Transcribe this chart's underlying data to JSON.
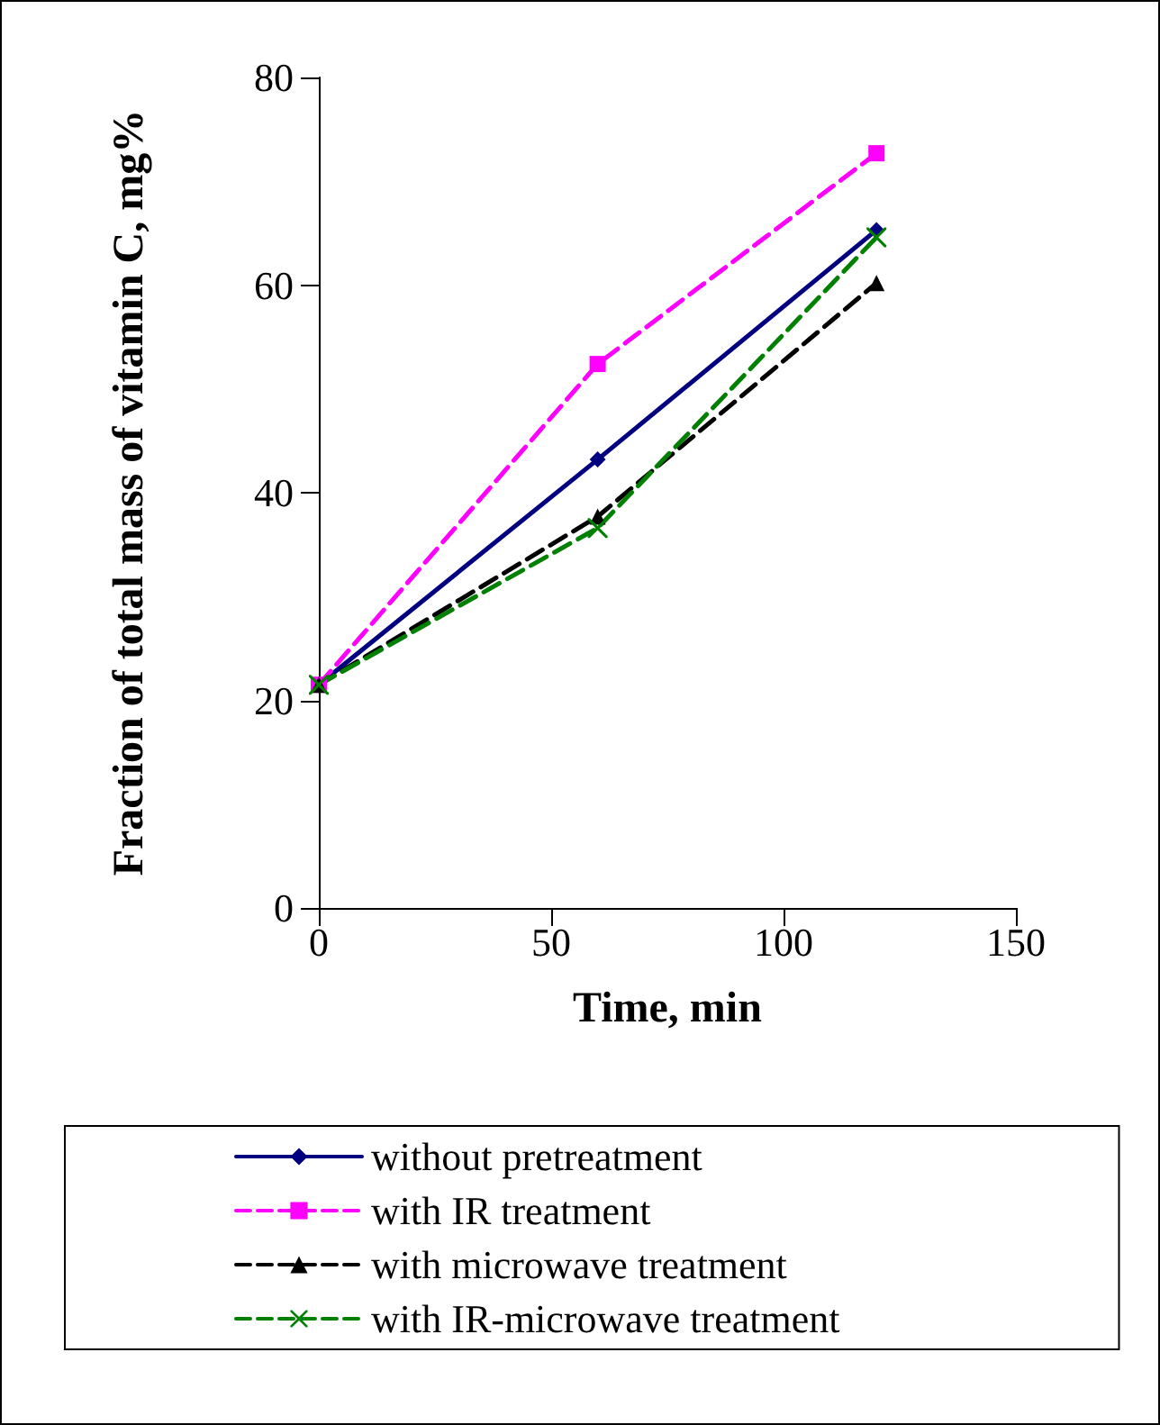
{
  "chart_data": {
    "type": "line",
    "xlabel": "Time, min",
    "ylabel": "Fraction of total mass of vitamin C, mg%",
    "x": [
      0,
      60,
      120
    ],
    "xlim": [
      0,
      150
    ],
    "xticks": [
      0,
      50,
      100,
      150
    ],
    "ylim": [
      0,
      80
    ],
    "yticks": [
      0,
      20,
      40,
      60,
      80
    ],
    "grid": false,
    "legend": "bottom",
    "series": [
      {
        "name": "without pretreatment",
        "color": "#000080",
        "marker": "diamond",
        "line_style": "solid",
        "values": [
          21.5,
          43.2,
          65.3
        ]
      },
      {
        "name": "with IR treatment",
        "color": "#ff00ff",
        "marker": "square",
        "line_style": "dashed",
        "values": [
          21.5,
          52.4,
          72.7
        ]
      },
      {
        "name": "with microwave treatment",
        "color": "#000000",
        "marker": "triangle",
        "line_style": "dashed",
        "values": [
          21.5,
          37.7,
          60.2
        ]
      },
      {
        "name": "with IR-microwave treatment",
        "color": "#008000",
        "marker": "cross",
        "line_style": "dashed",
        "values": [
          21.5,
          36.6,
          64.6
        ]
      }
    ]
  }
}
